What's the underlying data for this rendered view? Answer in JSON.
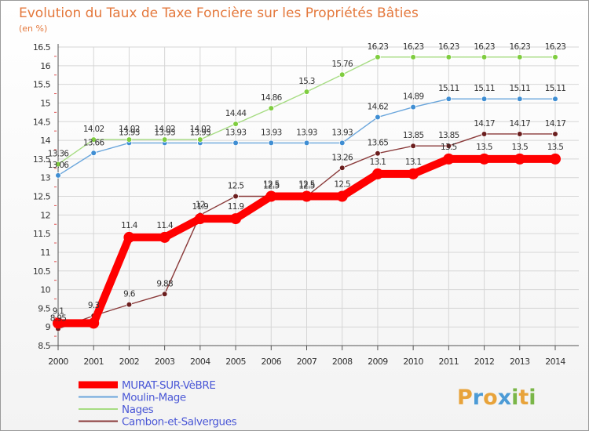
{
  "chart_data": {
    "type": "line",
    "title": "Evolution du Taux de Taxe Foncière sur les Propriétés Bâties",
    "unit_label": "(en %)",
    "xlabel": "",
    "ylabel": "",
    "ylim": [
      8.5,
      16.5
    ],
    "y_ticks": [
      8.5,
      9,
      9.5,
      10,
      10.5,
      11,
      11.5,
      12,
      12.5,
      13,
      13.5,
      14,
      14.5,
      15,
      15.5,
      16,
      16.5
    ],
    "categories": [
      "2000",
      "2001",
      "2002",
      "2003",
      "2004",
      "2005",
      "2006",
      "2007",
      "2008",
      "2009",
      "2010",
      "2011",
      "2012",
      "2013",
      "2014"
    ],
    "series": [
      {
        "name": "MURAT-SUR-VèBRE",
        "color": "#ff0000",
        "marker_color": "#ff0000",
        "thick": true,
        "values": [
          9.1,
          9.1,
          11.4,
          11.4,
          11.9,
          11.9,
          12.5,
          12.5,
          12.5,
          13.1,
          13.1,
          13.5,
          13.5,
          13.5,
          13.5
        ],
        "labels": [
          "9.1",
          "",
          "11.4",
          "11.4",
          "11.9",
          "11.9",
          "12.5",
          "12.5",
          "12.5",
          "13.1",
          "13.1",
          "13.5",
          "13.5",
          "13.5",
          "13.5"
        ]
      },
      {
        "name": "Moulin-Mage",
        "color": "#6aa6dc",
        "marker_color": "#3f8ed3",
        "thick": false,
        "values": [
          13.06,
          13.66,
          13.93,
          13.93,
          13.93,
          13.93,
          13.93,
          13.93,
          13.93,
          14.62,
          14.89,
          15.11,
          15.11,
          15.11,
          15.11
        ],
        "labels": [
          "13.06",
          "13.66",
          "13.93",
          "13.93",
          "13.93",
          "13.93",
          "13.93",
          "13.93",
          "13.93",
          "14.62",
          "14.89",
          "15.11",
          "15.11",
          "15.11",
          "15.11"
        ]
      },
      {
        "name": "Nages",
        "color": "#a6dc82",
        "marker_color": "#7fcd3f",
        "thick": false,
        "values": [
          13.36,
          14.02,
          14.02,
          14.02,
          14.02,
          14.44,
          14.86,
          15.3,
          15.76,
          16.23,
          16.23,
          16.23,
          16.23,
          16.23,
          16.23
        ],
        "labels": [
          "13.36",
          "14.02",
          "14.02",
          "14.02",
          "14.02",
          "14.44",
          "14.86",
          "15.3",
          "15.76",
          "16.23",
          "16.23",
          "16.23",
          "16.23",
          "16.23",
          "16.23"
        ]
      },
      {
        "name": "Cambon-et-Salvergues",
        "color": "#8a3a3a",
        "marker_color": "#6b1e1e",
        "thick": false,
        "values": [
          8.95,
          9.3,
          9.6,
          9.88,
          12.0,
          12.5,
          12.5,
          12.5,
          13.26,
          13.65,
          13.85,
          13.85,
          14.17,
          14.17,
          14.17
        ],
        "labels": [
          "8.95",
          "9.3",
          "9.6",
          "9.88",
          "12",
          "12.5",
          "12.5",
          "12.5",
          "13.26",
          "13.65",
          "13.85",
          "13.85",
          "14.17",
          "14.17",
          "14.17"
        ]
      }
    ],
    "legend_position": "bottom-left"
  },
  "brand": {
    "letters": [
      "P",
      "r",
      "o",
      "x",
      "i",
      "t",
      "i"
    ],
    "colors": [
      "#e8a33a",
      "#4c9bd6",
      "#e8a33a",
      "#4c9bd6",
      "#7ab648",
      "#e8a33a",
      "#7ab648"
    ]
  }
}
